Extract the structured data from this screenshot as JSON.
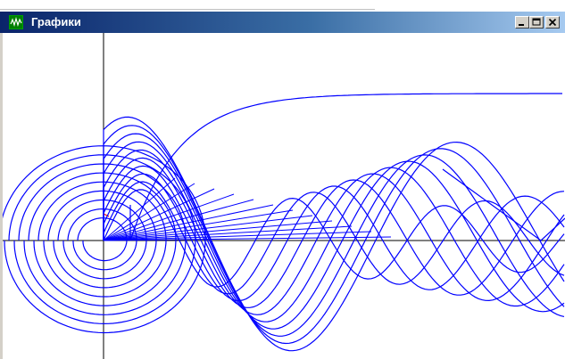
{
  "window": {
    "title": "Графики",
    "icon": "graph-app-icon",
    "titlebar_color_start": "#0a246a",
    "titlebar_color_end": "#a6caf0"
  },
  "controls": {
    "minimize_icon": "minimize-icon",
    "maximize_icon": "maximize-icon",
    "close_icon": "close-icon"
  },
  "plot": {
    "background": "#ffffff",
    "axis_color": "#000000",
    "curve_color": "#0000ff",
    "spiral_count": 9,
    "curve_family_count": 10
  }
}
